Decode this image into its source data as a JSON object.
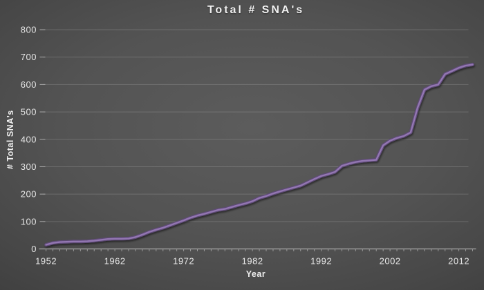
{
  "colors": {
    "background_center": "#5c5c5c",
    "background_edge": "#383838",
    "title_text": "#f1f1f1",
    "tick_text": "#e6e6e6",
    "axis_title_text": "#efefef",
    "gridline": "rgba(255,255,255,0.16)",
    "axis_line": "#aaaaaa",
    "minor_tick": "#9a9a9a",
    "line_outer": "#5e4b77",
    "line_inner": "#9377b2"
  },
  "chart_data": {
    "type": "line",
    "title": "Total # SNA's",
    "xlabel": "Year",
    "ylabel": "# Total SNA's",
    "legend": "none",
    "grid": "horizontal",
    "marker": "none",
    "ylim": [
      0,
      800
    ],
    "y_ticks": [
      0,
      100,
      200,
      300,
      400,
      500,
      600,
      700,
      800
    ],
    "x_ticks": [
      1952,
      1962,
      1972,
      1982,
      1992,
      2002,
      2012
    ],
    "x_start": 1952,
    "x": [
      1952,
      1953,
      1954,
      1955,
      1956,
      1957,
      1958,
      1959,
      1960,
      1961,
      1962,
      1963,
      1964,
      1965,
      1966,
      1967,
      1968,
      1969,
      1970,
      1971,
      1972,
      1973,
      1974,
      1975,
      1976,
      1977,
      1978,
      1979,
      1980,
      1981,
      1982,
      1983,
      1984,
      1985,
      1986,
      1987,
      1988,
      1989,
      1990,
      1991,
      1992,
      1993,
      1994,
      1995,
      1996,
      1997,
      1998,
      1999,
      2000,
      2001,
      2002,
      2003,
      2004,
      2005,
      2006,
      2007,
      2008,
      2009,
      2010,
      2011,
      2012,
      2013,
      2014
    ],
    "series": [
      {
        "name": "Total # SNA's",
        "values": [
          15,
          22,
          25,
          26,
          27,
          27,
          28,
          30,
          33,
          36,
          37,
          37,
          38,
          43,
          52,
          62,
          70,
          77,
          86,
          95,
          104,
          114,
          122,
          128,
          135,
          142,
          146,
          153,
          160,
          166,
          174,
          186,
          193,
          202,
          210,
          217,
          224,
          231,
          243,
          255,
          266,
          273,
          281,
          303,
          311,
          317,
          321,
          323,
          325,
          378,
          395,
          405,
          412,
          425,
          515,
          581,
          594,
          600,
          638,
          649,
          661,
          669,
          673
        ]
      }
    ]
  }
}
